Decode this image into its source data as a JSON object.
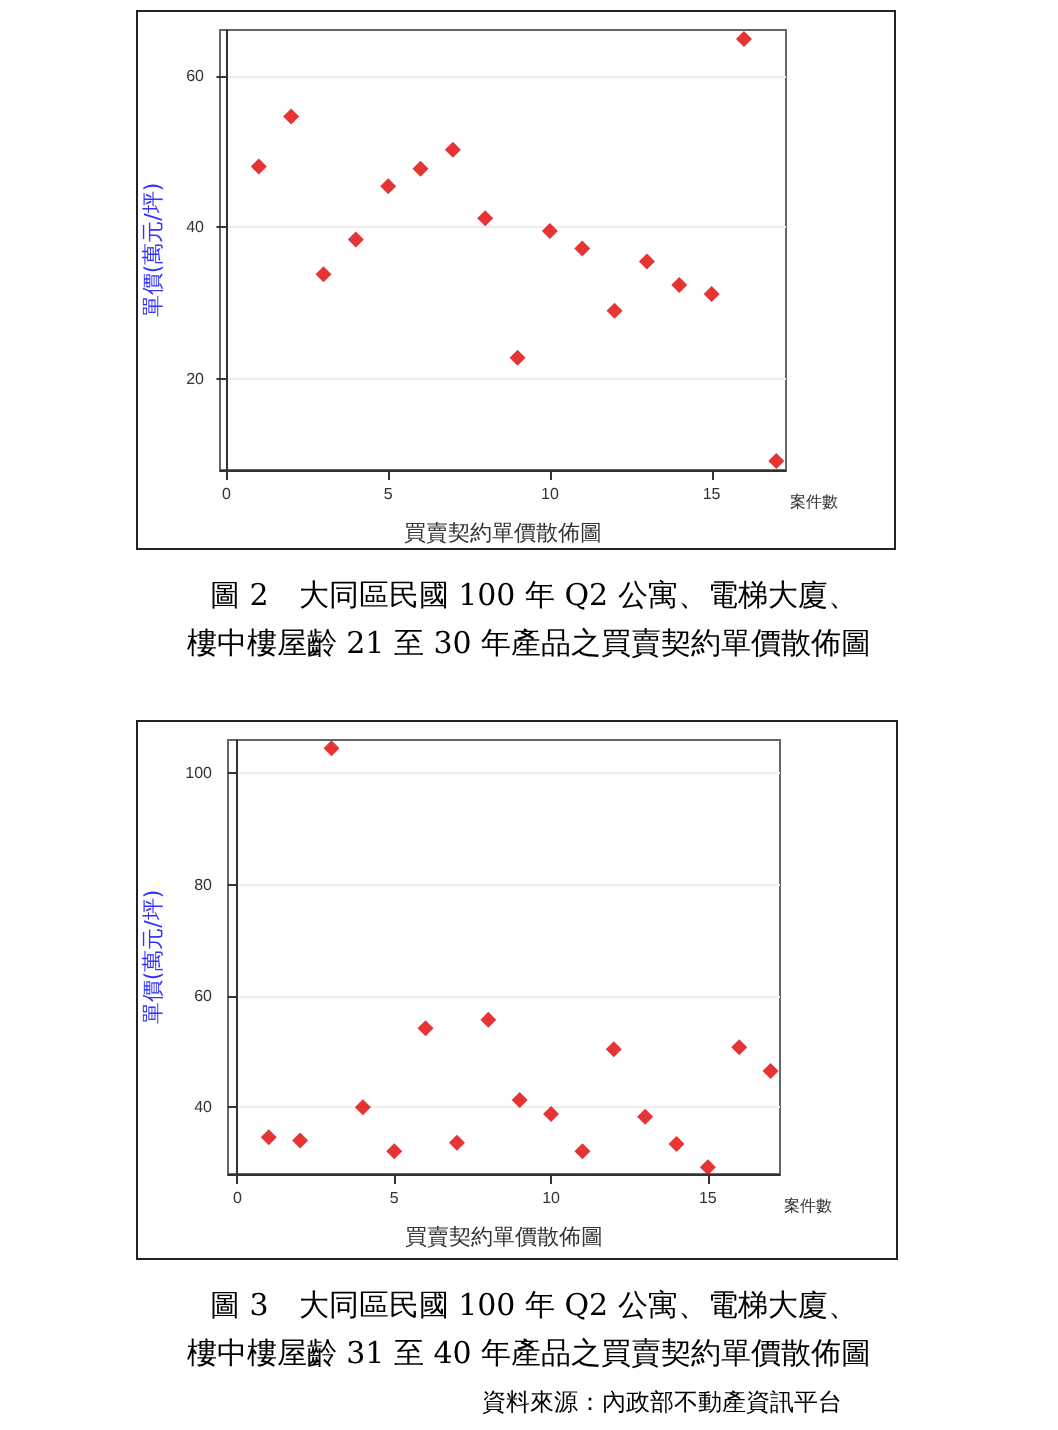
{
  "chart_data": [
    {
      "type": "scatter",
      "title": "圖 2　大同區民國 100 年 Q2 公寓、電梯大廈、",
      "subtitle": "樓中樓屋齡 21 至 30 年產品之買賣契約單價散佈圖",
      "xlabel": "買賣契約單價散佈圖",
      "ylabel": "單價(萬元/坪)",
      "annotations": [
        "案件數"
      ],
      "x": [
        1,
        2,
        3,
        4,
        5,
        6,
        7,
        8,
        9,
        10,
        11,
        12,
        13,
        14,
        15,
        16,
        17
      ],
      "series": [
        {
          "color": "#e00000",
          "values": [
            48.0,
            54.6,
            33.8,
            38.4,
            45.4,
            47.7,
            50.2,
            41.2,
            22.8,
            39.5,
            37.2,
            29.0,
            35.5,
            32.4,
            31.2,
            64.8,
            9.2
          ]
        }
      ],
      "xlim": [
        -0.2,
        17.3
      ],
      "xticks": [
        0,
        5,
        10,
        15
      ],
      "ylim": [
        8,
        66
      ],
      "yticks": [
        20,
        40,
        60
      ],
      "grid": "y",
      "marker": "diamond"
    },
    {
      "type": "scatter",
      "title": "圖 3　大同區民國 100 年 Q2 公寓、電梯大廈、",
      "subtitle": "樓中樓屋齡 31 至 40 年產品之買賣契約單價散佈圖",
      "xlabel": "買賣契約單價散佈圖",
      "ylabel": "單價(萬元/坪)",
      "annotations": [
        "案件數",
        "資料來源：內政部不動產資訊平台"
      ],
      "x": [
        1,
        2,
        3,
        4,
        5,
        6,
        7,
        8,
        9,
        10,
        11,
        12,
        13,
        14,
        15,
        16,
        17
      ],
      "series": [
        {
          "color": "#e00000",
          "values": [
            34.6,
            34.0,
            104.5,
            40.0,
            32.1,
            54.2,
            33.6,
            55.7,
            41.3,
            38.8,
            32.1,
            50.4,
            38.3,
            33.4,
            29.2,
            50.8,
            46.5
          ]
        }
      ],
      "xlim": [
        -0.3,
        17.3
      ],
      "xticks": [
        0,
        5,
        10,
        15
      ],
      "ylim": [
        28,
        106
      ],
      "yticks": [
        40,
        60,
        80,
        100
      ],
      "grid": "y",
      "marker": "diamond"
    }
  ]
}
